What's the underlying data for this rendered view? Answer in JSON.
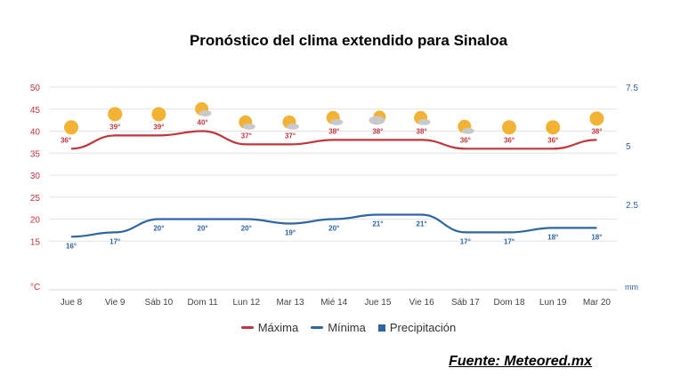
{
  "colors": {
    "max": "#c0363c",
    "min": "#2d66a3",
    "precip": "#2d66a3",
    "axis_left": "#c0363c",
    "axis_right": "#2d66a3",
    "grid": "#e4e4e4",
    "sun": "#f2b233",
    "cloud": "#c9c9c9"
  },
  "page": {
    "title": "Pronóstico del clima extendido para Sinaloa",
    "source": "Fuente: Meteored.mx"
  },
  "legend": {
    "max": "Máxima",
    "min": "Mínima",
    "precip": "Precipitación"
  },
  "chart_data": {
    "type": "line",
    "categories": [
      "Jue 8",
      "Vie 9",
      "Sáb 10",
      "Dom 11",
      "Lun 12",
      "Mar 13",
      "Mié 14",
      "Jue 15",
      "Vie 16",
      "Sáb 17",
      "Dom 18",
      "Lun 19",
      "Mar 20"
    ],
    "series": [
      {
        "name": "Máxima",
        "values": [
          36,
          39,
          39,
          40,
          37,
          37,
          38,
          38,
          38,
          36,
          36,
          36,
          38
        ],
        "labels": [
          "36°",
          "39°",
          "39°",
          "40°",
          "37°",
          "37°",
          "38°",
          "38°",
          "38°",
          "36°",
          "36°",
          "36°",
          "38°"
        ]
      },
      {
        "name": "Mínima",
        "values": [
          16,
          17,
          20,
          20,
          20,
          19,
          20,
          21,
          21,
          17,
          17,
          18,
          18
        ],
        "labels": [
          "16°",
          "17°",
          "20°",
          "20°",
          "20°",
          "19°",
          "20°",
          "21°",
          "21°",
          "17°",
          "17°",
          "18°",
          "18°"
        ]
      }
    ],
    "icons": [
      "sun-icon",
      "sun-icon",
      "sun-icon",
      "sun-cloud-icon",
      "sun-cloud-icon",
      "sun-cloud-icon",
      "sun-cloud-icon",
      "cloud-sun-icon",
      "sun-cloud-icon",
      "sun-cloud-icon",
      "sun-icon",
      "sun-icon",
      "sun-icon"
    ],
    "y_left": {
      "label": "°C",
      "ticks": [
        "50",
        "45",
        "40",
        "35",
        "30",
        "25",
        "20",
        "15"
      ],
      "ylim": [
        10,
        50
      ]
    },
    "y_right": {
      "label": "mm",
      "ticks": [
        "7.5",
        "5",
        "2.5"
      ],
      "ylim": [
        0,
        7.5
      ]
    },
    "grid": true,
    "legend_position": "bottom"
  }
}
